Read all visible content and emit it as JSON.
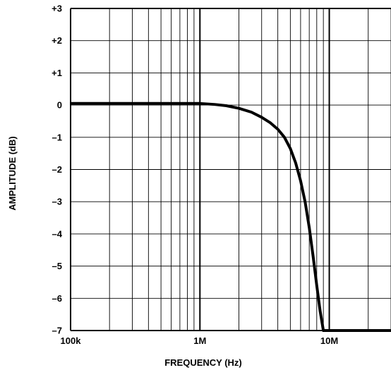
{
  "chart_data": {
    "type": "line",
    "title": "",
    "xlabel": "FREQUENCY (Hz)",
    "ylabel": "AMPLITUDE (dB)",
    "x_scale": "log",
    "xlim": [
      100000,
      30000000
    ],
    "ylim": [
      -7,
      3
    ],
    "grid": true,
    "legend": "none",
    "x_ticks": [
      {
        "value": 100000,
        "label": "100k"
      },
      {
        "value": 1000000,
        "label": "1M"
      },
      {
        "value": 10000000,
        "label": "10M"
      }
    ],
    "y_ticks": [
      {
        "value": 3,
        "label": "+3"
      },
      {
        "value": 2,
        "label": "+2"
      },
      {
        "value": 1,
        "label": "+1"
      },
      {
        "value": 0,
        "label": "0"
      },
      {
        "value": -1,
        "label": "–1"
      },
      {
        "value": -2,
        "label": "–2"
      },
      {
        "value": -3,
        "label": "–3"
      },
      {
        "value": -4,
        "label": "–4"
      },
      {
        "value": -5,
        "label": "–5"
      },
      {
        "value": -6,
        "label": "–6"
      },
      {
        "value": -7,
        "label": "–7"
      }
    ],
    "series": [
      {
        "color": "#000000",
        "points": [
          {
            "x": 100000,
            "y": 0.05
          },
          {
            "x": 500000,
            "y": 0.05
          },
          {
            "x": 1000000,
            "y": 0.05
          },
          {
            "x": 1300000,
            "y": 0.02
          },
          {
            "x": 1600000,
            "y": -0.02
          },
          {
            "x": 2000000,
            "y": -0.1
          },
          {
            "x": 2500000,
            "y": -0.22
          },
          {
            "x": 3000000,
            "y": -0.38
          },
          {
            "x": 3500000,
            "y": -0.55
          },
          {
            "x": 4000000,
            "y": -0.75
          },
          {
            "x": 4500000,
            "y": -1.0
          },
          {
            "x": 5000000,
            "y": -1.35
          },
          {
            "x": 5500000,
            "y": -1.8
          },
          {
            "x": 6000000,
            "y": -2.35
          },
          {
            "x": 6500000,
            "y": -3.0
          },
          {
            "x": 7000000,
            "y": -3.8
          },
          {
            "x": 7500000,
            "y": -4.7
          },
          {
            "x": 8000000,
            "y": -5.6
          },
          {
            "x": 8500000,
            "y": -6.4
          },
          {
            "x": 9000000,
            "y": -7.0
          },
          {
            "x": 30000000,
            "y": -7.0
          }
        ]
      }
    ]
  }
}
